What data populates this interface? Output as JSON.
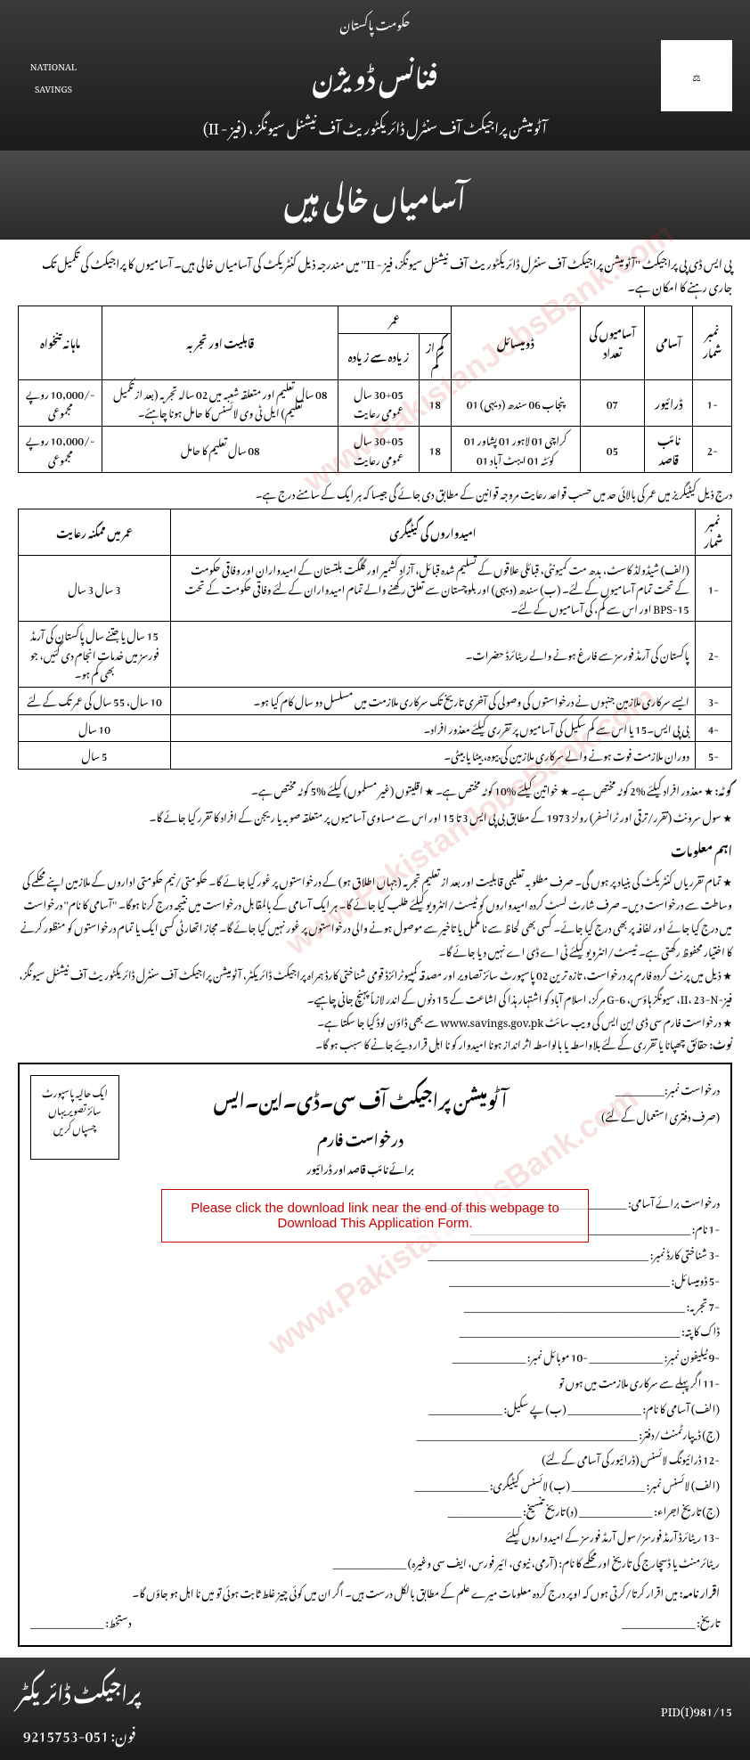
{
  "header": {
    "govt": "حکومت پاکستان",
    "title": "فنانس ڈویژن",
    "sub": "آٹومیشن پراجیکٹ آف سنٹرل ڈائریکٹوریٹ آف نیشنل سیونگز ، (فیز - II)",
    "logo_left": "NATIONAL SAVINGS",
    "logo_right": "⚖"
  },
  "banner": "آسامیاں خالی ہیں",
  "intro": "پی ایس ڈی پی پراجیکٹ ''آٹومیشن پراجیکٹ آف سنٹرل ڈائریکٹوریٹ آف نیشنل سیونگز، فیز - II'' میں مندرجہ ذیل کنٹریکٹ کی آسامیاں خالی ہیں۔ آسامیوں کا پراجیکٹ کی تکمیل تک جاری رہنے کا امکان ہے۔",
  "table1": {
    "headers": [
      "نمبر شمار",
      "آسامی",
      "آسامیوں کی تعداد",
      "ڈومیسائل",
      "عمر",
      "",
      "قابلیت اور تجربہ",
      "ماہانہ تنخواہ"
    ],
    "subheaders": [
      "",
      "",
      "",
      "",
      "کم از کم",
      "زیادہ سے زیادہ",
      "",
      ""
    ],
    "rows": [
      [
        "-1",
        "ڈرائیور",
        "07",
        "پنجاب 06\nسندھ (دیہی) 01",
        "18",
        "30+05 سال عمومی رعایت",
        "08 سال تعلیم اور متعلقہ شعبہ میں 02 سالہ تجربہ (بعد از تکمیل تعلیم)\nایل ٹی وی لائسنس کا حامل ہونا چاہئے۔",
        "-/10,000 روپے مجموعی"
      ],
      [
        "-2",
        "نائب قاصد",
        "05",
        "کراچی 01 لاہور 01 پشاور 01\nکوئٹہ 01 ایبٹ آباد 01",
        "18",
        "30+05 سال عمومی رعایت",
        "08 سال تعلیم کا حامل",
        "-/10,000 روپے مجموعی"
      ]
    ]
  },
  "age_note": "درج ذیل کیٹیگریز میں عمر کی بالائی حد میں حسب قواعد رعایت مروجہ قوانین کے مطابق دی جائے گی جیسا کہ ہر ایک کے سامنے درج ہے۔",
  "table2": {
    "headers": [
      "نمبر شمار",
      "امیدواروں کی کیٹیگری",
      "عمر میں ممکنہ رعایت"
    ],
    "rows": [
      [
        "-1",
        "(الف) شیڈولڈ کاسٹ، بدھ مت کمیونٹی، قبائلی علاقوں کے تسلیم شدہ قبائل، آزاد کشمیر اور گلگت بلتستان کے امیدواران اور وفاقی حکومت کے تحت تمام آسامیوں کے لئے۔\n(ب) سندھ (دیہی) اور بلوچستان سے تعلق رکھنے والے تمام امیدواران کے لئے وفاقی حکومت کے تحت BPS-15 اور اس سے کم، کی آسامیوں کے لئے۔",
        "3 سال\n3 سال"
      ],
      [
        "-2",
        "پاکستان کی آرمڈ فورسز سے فارغ ہونے والے ریٹائرڈ حضرات۔",
        "15 سال یا جتنے سال پاکستان کی آرمڈ فورسز میں خدمات انجام دی گئیں، جو بھی کم ہو۔"
      ],
      [
        "-3",
        "ایسے سرکاری ملازمین جنہوں نے درخواستوں کی وصولی کی آخری تاریخ تک سرکاری ملازمت میں مسلسل دو سال کام کیا ہو۔",
        "10 سال، 55 سال کی عمر تک کے لئے"
      ],
      [
        "-4",
        "بی پی ایس۔15 یا اس سے کم سکیل کی آسامیوں پر تقرری کیلئے معذور افراد۔",
        "10 سال"
      ],
      [
        "-5",
        "دوران ملازمت فوت ہونے والے سرکاری ملازمین کی بیوہ، بیٹا یا بیٹی۔",
        "5 سال"
      ]
    ]
  },
  "quota": {
    "label": "کوٹہ:",
    "text": "★ معذور افراد کیلئے %2 کوٹہ مختص ہے۔   ★ خواتین کیلئے %10 کوٹہ مختص ہے۔   ★ اقلیتوں (غیر مسلموں) کیلئے %5 کوٹہ مختص ہے۔",
    "text2": "★ سول سرونٹ (تقرر/ترقی اور ٹرانسفر) رولز 1973 کے مطابق بی پی ایس 3 تا 15 اور اس سے مساوی آسامیوں پر متعلقہ صوبہ یا ریجن کے افراد کا تقرر کیا جائے گا۔"
  },
  "info": {
    "title": "اہم معلومات",
    "items": [
      "تمام تقرریاں کنٹریکٹ کی بنیاد پر ہوں گی۔ صرف مطلوبہ تعلیمی قابلیت اور بعد از تعلیم تجربہ (جہاں اطلاق ہو) کے درخواستوں پر غور کیا جائے گا۔ حکومتی/نیم حکومتی اداروں کے ملازمین اپنے محکمے کی وساطت سے درخواست دیں۔ صرف شارٹ لسٹ کردہ امیدواروں کو ٹیسٹ/انٹرویو کیلئے طلب کیا جائے گا۔ ہر ایک آسامی کے بالمقابل درخواست میں نتیجہ درج کرنا ہوگا۔ ''آسامی کا نام'' درخواست میں درج کیا جائے اور لفافہ پر بھی درج کیا جائے۔ کسی بھی لحاظ سے نا مکمل یا تاخیر سے موصول ہونے والی درخواستوں پر غور نہیں کیا جائے گا۔ مجاز اتھارٹی کسی ایک یا تمام درخواستوں کو منظور کرنے کا اختیار محفوظ رکھتی ہے۔ ٹیسٹ/انٹرویو کیلئے ٹی اے ڈی اے نہیں دیا جائے گا۔",
      "ذیل میں پرنٹ کردہ فارم پر درخواست، تازہ ترین 02 پاسپورٹ سائز تصاویر اور مصدقہ کمپیوٹرائزڈ قومی شناختی کارڈ ہمراہ پراجیکٹ ڈائریکٹر، آٹومیشن پراجیکٹ آف سنٹرل ڈائریکٹوریٹ آف نیشنل سیونگز، فیز-II، 23-N، سیونگز ہاؤس، G-6 مرکز، اسلام آباد کو اشتہار ہذا کی اشاعت کے 15 دنوں کے اندر لازماً پہنچ جانی چاہیے۔",
      "درخواست فارم سی ڈی این ایس کی ویب سائٹ www.savings.gov.pk سے بھی ڈاؤن لوڈ کیا جا سکتا ہے۔"
    ],
    "note_label": "نوٹ:",
    "note": "حقائق چھپانا یا تقرری کے لئے بلاواسطہ یا بالواسطہ اثر انداز ہونا امیدوار کو نا اہل قرار دیئے جانے کا سبب ہو گا۔"
  },
  "form": {
    "req_no": "درخواست نمبر:__________",
    "office_use": "(صرف دفتری استعمال کے لئے)",
    "title": "آٹومیشن پراجیکٹ آف سی۔ڈی۔این۔ایس",
    "subtitle": "درخواست فارم",
    "for": "برائے نائب قاصد اور ڈرائیور",
    "photo": "ایک حالیہ پاسپورٹ سائز تصویر یہاں چسپاں کریں",
    "overlay": "Please click the download link near the end of this webpage to Download This Application Form.",
    "fields": [
      "درخواست برائے آسامی: _____________________________________________",
      "-1   نام: _____________________________________________",
      "-3   شناختی کارڈ نمبر: _____________________________________________",
      "-5   ڈومیسائل: _____________________________________________",
      "-7   تجربہ: _____________________________________________",
      " ",
      "ڈاک کا پتہ: _____________________________________________",
      "-9   ٹیلیفون نمبر: _______________   -10   موبائل نمبر: _______________",
      "-11   اگر پہلے سے سرکاری ملازمت میں ہوں تو",
      "     (الف) آسامی کا نام: _______________   (ب) پے سکیل: _______________",
      "     (ج) ڈیپارٹمنٹ/دفتر: _____________________________________________",
      "-12   ڈرائیونگ لائسنس (ڈرائیور کی آسامی کے لئے)",
      "     (الف) لائسنس نمبر: _______________   (ب) لائسنس کیٹیگری: _______________",
      "     (ج) تاریخ اجراء: _______________   (د) تاریخ تنسیخ: _______________",
      "-13   ریٹائرڈ آرمڈ فورسز/سول آرمڈ فورسز کے امیدواروں کیلئے",
      "     ریٹائرمنٹ یا ڈسچارج کی تاریخ اور محکمے کا نام: (آرمی، نیوی، ائیر فورس، ایف سی وغیرہ) _______________"
    ],
    "declaration_label": "اقرار نامہ:",
    "declaration": "میں اقرار کرتا/کرتی ہوں کہ اوپر درج کردہ معلومات میرے علم کے مطابق بالکل درست ہیں۔ اگر ان میں کوئی چیز غلط ثابت ہوئی تو میں نا اہل ہو جاؤں گا۔",
    "date": "تاریخ: _______________",
    "sign": "دستخط: _______________"
  },
  "footer": {
    "title": "پراجیکٹ ڈائریکٹر",
    "phone_label": "فون:",
    "phone": "051-9215753",
    "pid": "PID(I)981/15"
  },
  "watermark": "www.PakistanJobsBank.com"
}
